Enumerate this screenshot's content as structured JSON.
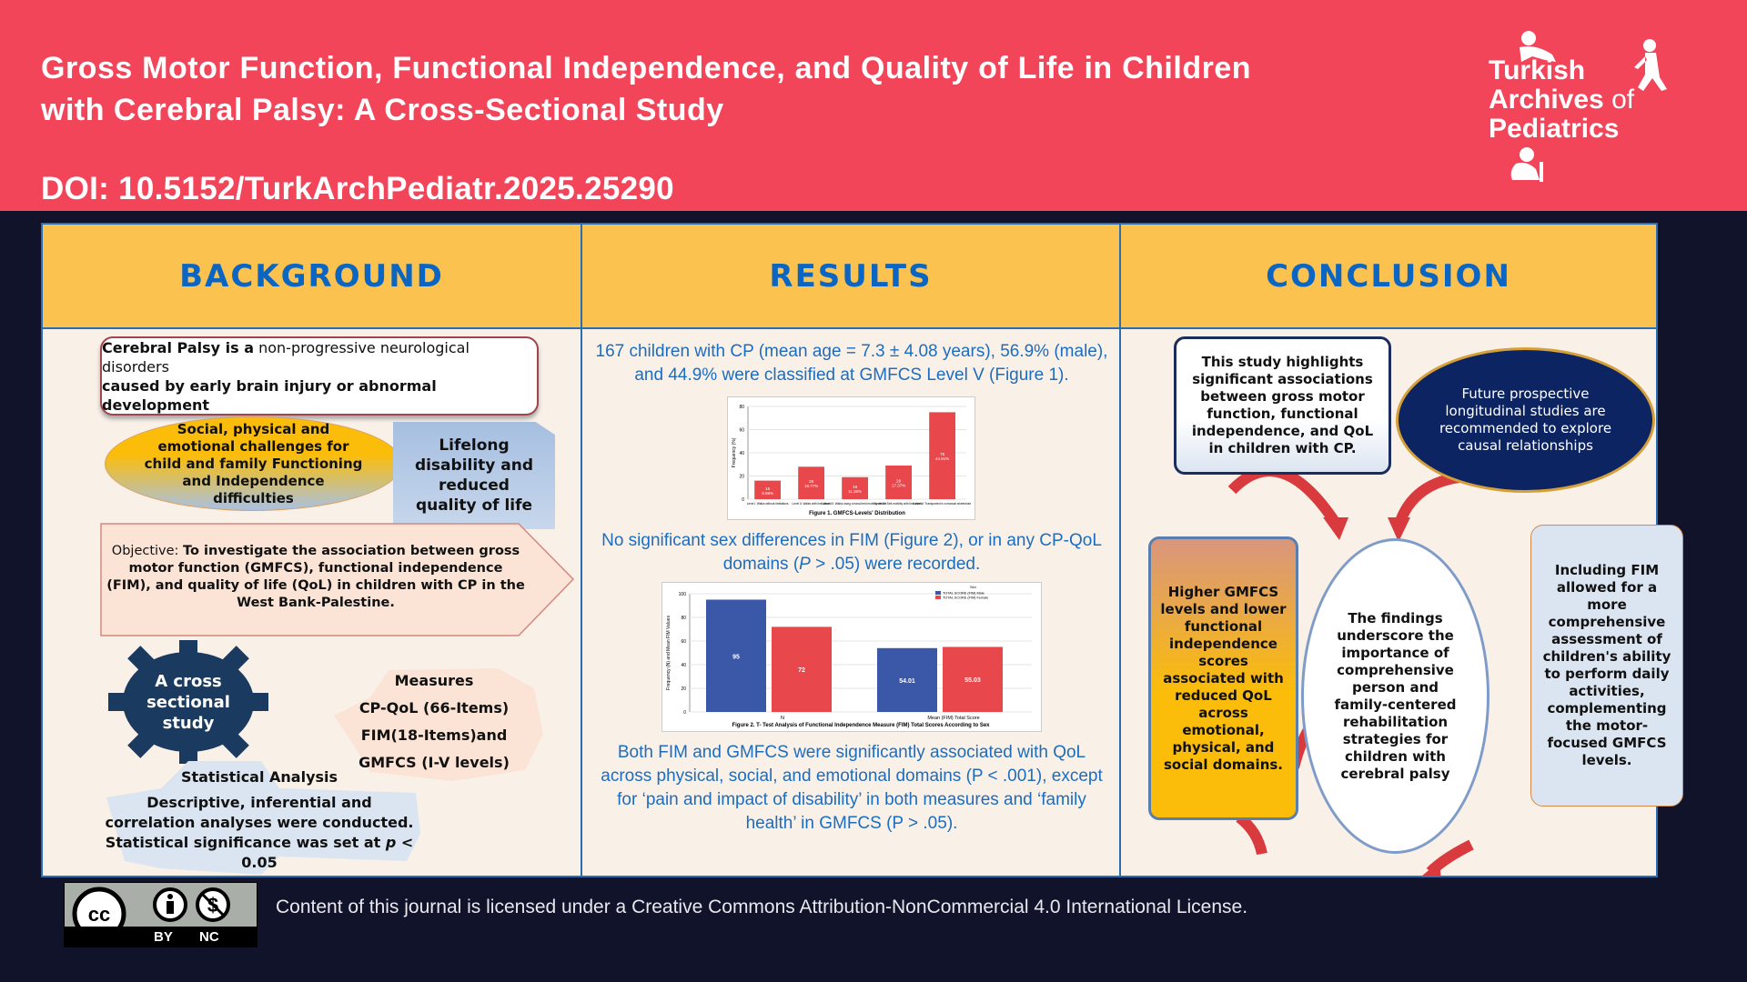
{
  "header": {
    "title": "Gross Motor Function, Functional Independence, and Quality of Life in Children with Cerebral Palsy: A Cross-Sectional Study",
    "doi": "DOI: 10.5152/TurkArchPediatr.2025.25290"
  },
  "logo": {
    "line1": "Turkish",
    "line2": "Archives",
    "line2b": "of",
    "line3": "Pediatrics"
  },
  "sections": {
    "background": "BACKGROUND",
    "results": "RESULTS",
    "conclusion": "CONCLUSION"
  },
  "background": {
    "cp_bold": "Cerebral Palsy is a",
    "cp_regular": " non-progressive neurological disorders",
    "cp_line2": "caused by early brain injury or abnormal development",
    "challenges": "Social, physical and emotional challenges for child and family Functioning and Independence difficulties",
    "lifelong": "Lifelong disability and reduced quality of life",
    "objective_label": "Objective: ",
    "objective": "To investigate the association between gross motor function (GMFCS), functional independence (FIM), and quality of life (QoL) in children with CP in the West Bank-Palestine.",
    "design": "A cross sectional study",
    "measures_title": "Measures",
    "measures": [
      "CP-QoL (66-Items)",
      "FIM(18-Items)and",
      "GMFCS (I-V levels)"
    ],
    "stats_title": "Statistical Analysis",
    "stats_text": "Descriptive, inferential and correlation analyses were conducted. Statistical significance was set at ",
    "stats_p": "p",
    "stats_end": " < 0.05"
  },
  "results": {
    "p1": "167 children with CP  (mean age = 7.3 ± 4.08 years), 56.9% (male), and 44.9% were classified at GMFCS Level V (Figure 1).",
    "p2a": "No significant sex differences in FIM (Figure 2), or in any CP-QoL domains (",
    "p2p": "P",
    "p2b": " > .05) were recorded.",
    "p3": "Both FIM and GMFCS were significantly associated with QoL across physical, social, and emotional domains (P < .001), except for ‘pain and impact of disability’ in both measures and ‘family health’ in GMFCS (P > .05)."
  },
  "conclusion": {
    "highlights": "This study highlights significant associations between gross motor function, functional independence, and QoL in children with CP.",
    "future": "Future prospective longitudinal studies are recommended to explore causal relationships",
    "gmfcs": "Higher GMFCS levels and lower functional independence scores associated with reduced QoL across emotional, physical, and social domains.",
    "findings": "The findings underscore the importance of comprehensive person and family-centered rehabilitation strategies for children with cerebral palsy",
    "fim": "Including FIM allowed for a more comprehensive assessment of children's ability to perform daily activities, complementing the motor-focused GMFCS levels."
  },
  "footer": {
    "license": "Content of this journal is licensed under a Creative Commons Attribution-NonCommercial 4.0 International License.",
    "cc": "cc",
    "by": "BY",
    "nc": "NC"
  },
  "colors": {
    "header": "#f2455a",
    "heading_bg": "#fcc250",
    "heading_text": "#0a66c2",
    "bar_red": "#e8474c",
    "bar_blue": "#3a57a8"
  },
  "chart_data": [
    {
      "type": "bar",
      "title": "Figure 1. GMFCS-Levels' Distribution",
      "ylabel": "Frequency (%)",
      "ylim": [
        0,
        80
      ],
      "yticks": [
        "0",
        "20",
        "40",
        "60",
        "80"
      ],
      "categories": [
        "Level I: Walks without limitations",
        "Level II: Walks with limitations",
        "Level III: Walks using a hand-held mobility device",
        "Level IV: Self-mobility with limitations",
        "Level V: Transported in a manual wheelchair"
      ],
      "values": [
        16,
        28,
        19,
        29,
        75
      ],
      "labels": [
        "16\n9.58%",
        "28\n16.77%",
        "19\n11.38%",
        "29\n17.37%",
        "75\n44.91%"
      ]
    },
    {
      "type": "bar",
      "title": "Figure 2. T- Test Analysis of Functional Independence Measure (FIM) Total Scores According to Sex",
      "ylabel": "Frequency (N) and Mean FIM Values",
      "ylim": [
        0,
        100
      ],
      "yticks": [
        "0",
        "20",
        "40",
        "60",
        "80",
        "100"
      ],
      "categories": [
        "N",
        "Mean (FIM) Total Score"
      ],
      "legend_title": "Sex",
      "legend_position": "top-right",
      "series": [
        {
          "name": "TOTAL SCORE (FIM) Male",
          "values": [
            95,
            54.01
          ],
          "labels": [
            "95",
            "54.01"
          ]
        },
        {
          "name": "TOTAL SCORE (FIM) Female",
          "values": [
            72,
            55.03
          ],
          "labels": [
            "72",
            "55.03"
          ]
        }
      ]
    }
  ]
}
